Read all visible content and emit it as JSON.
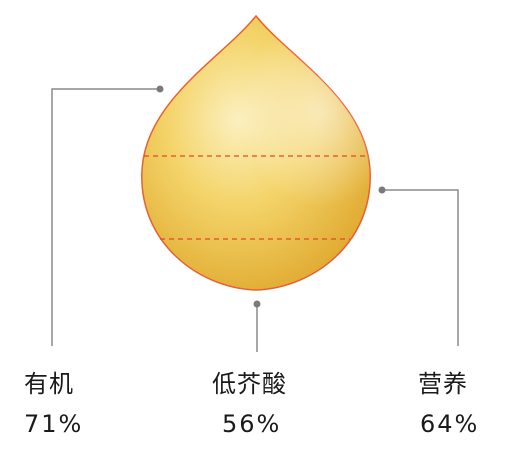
{
  "stats": [
    {
      "label": "有机",
      "value": "71%"
    },
    {
      "label": "低芥酸",
      "value": "56%"
    },
    {
      "label": "营养",
      "value": "64%"
    }
  ],
  "colors": {
    "drop_fill_light": "#fbf0c0",
    "drop_fill_mid": "#f4d46a",
    "drop_fill_dark": "#dfa92f",
    "drop_outline": "#e8612f",
    "dashed_line": "#e04a2a",
    "leader_line": "#8a8a8a",
    "text": "#1a1a1a"
  }
}
